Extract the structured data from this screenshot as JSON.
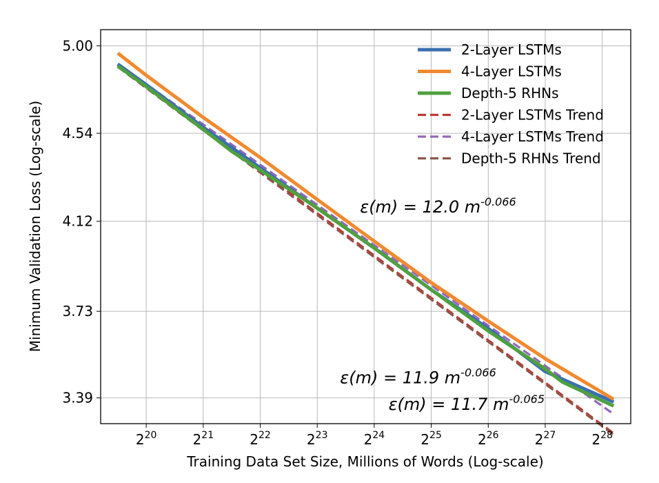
{
  "chart_data": {
    "type": "line",
    "xlabel": "Training Data Set Size, Millions of Words (Log-scale)",
    "ylabel": "Minimum Validation Loss (Log-scale)",
    "x_scale": "log2",
    "y_scale": "log",
    "xlim_log2": [
      19.2,
      28.5
    ],
    "ylim": [
      3.295,
      5.09
    ],
    "grid": true,
    "legend_position": "top-right",
    "x_ticks": [
      {
        "exp": 20,
        "base": "2",
        "power": "20"
      },
      {
        "exp": 21,
        "base": "2",
        "power": "21"
      },
      {
        "exp": 22,
        "base": "2",
        "power": "22"
      },
      {
        "exp": 23,
        "base": "2",
        "power": "23"
      },
      {
        "exp": 24,
        "base": "2",
        "power": "24"
      },
      {
        "exp": 25,
        "base": "2",
        "power": "25"
      },
      {
        "exp": 26,
        "base": "2",
        "power": "26"
      },
      {
        "exp": 27,
        "base": "2",
        "power": "27"
      },
      {
        "exp": 28,
        "base": "2",
        "power": "28"
      }
    ],
    "y_ticks": [
      {
        "value": 5.0,
        "label": "5.00"
      },
      {
        "value": 4.54,
        "label": "4.54"
      },
      {
        "value": 4.12,
        "label": "4.12"
      },
      {
        "value": 3.73,
        "label": "3.73"
      },
      {
        "value": 3.39,
        "label": "3.39"
      }
    ],
    "series": [
      {
        "name": "2-Layer LSTMs",
        "color": "#3b6fb0",
        "style": "solid",
        "x_log2": [
          19.5,
          20.0,
          21.0,
          22.0,
          23.0,
          24.0,
          25.0,
          26.0,
          27.0,
          28.2
        ],
        "y": [
          4.9,
          4.79,
          4.57,
          4.37,
          4.18,
          4.0,
          3.82,
          3.66,
          3.49,
          3.375
        ]
      },
      {
        "name": "4-Layer LSTMs",
        "color": "#f08a30",
        "style": "solid",
        "x_log2": [
          19.5,
          20.0,
          21.0,
          22.0,
          23.0,
          24.0,
          25.0,
          26.0,
          27.0,
          28.2
        ],
        "y": [
          4.96,
          4.84,
          4.62,
          4.42,
          4.22,
          4.03,
          3.85,
          3.69,
          3.54,
          3.385
        ]
      },
      {
        "name": "Depth-5 RHNs",
        "color": "#4fa040",
        "style": "solid",
        "x_log2": [
          19.5,
          20.0,
          21.0,
          21.5,
          22.0,
          23.0,
          24.0,
          25.0,
          26.0,
          27.0,
          27.3,
          28.2
        ],
        "y": [
          4.89,
          4.78,
          4.56,
          4.45,
          4.36,
          4.18,
          4.0,
          3.82,
          3.65,
          3.5,
          3.45,
          3.36
        ]
      },
      {
        "name": "2-Layer LSTMs Trend",
        "color": "#c03a34",
        "style": "dashed",
        "x_log2": [
          19.5,
          28.2
        ],
        "y": [
          4.895,
          3.26
        ]
      },
      {
        "name": "4-Layer LSTMs Trend",
        "color": "#9467bd",
        "style": "dashed",
        "x_log2": [
          19.5,
          28.2
        ],
        "y": [
          4.9,
          3.33
        ]
      },
      {
        "name": "Depth-5 RHNs Trend",
        "color": "#8c564b",
        "style": "dashed",
        "x_log2": [
          19.5,
          28.2
        ],
        "y": [
          4.885,
          3.255
        ]
      }
    ],
    "annotations": [
      {
        "text": "ε(m) = 12.0 m",
        "exponent": "-0.066",
        "x_log2": 23.75,
        "y": 4.16
      },
      {
        "text": "ε(m) = 11.9 m",
        "exponent": "-0.066",
        "x_log2": 23.4,
        "y": 3.445
      },
      {
        "text": "ε(m) = 11.7 m",
        "exponent": "-0.065",
        "x_log2": 24.25,
        "y": 3.345
      }
    ]
  }
}
